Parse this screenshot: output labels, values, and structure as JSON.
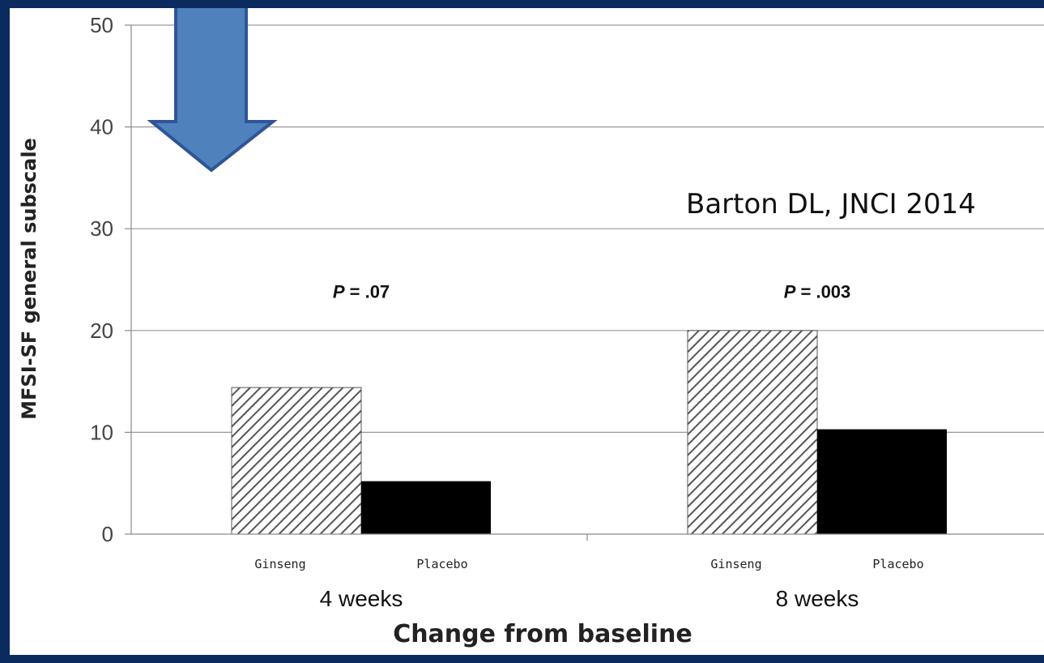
{
  "chart_data": {
    "type": "bar",
    "xlabel": "Change from baseline",
    "ylabel": "MFSI-SF general subscale",
    "ylim": [
      0,
      50
    ],
    "yticks": [
      0,
      10,
      20,
      30,
      40,
      50
    ],
    "grid": true,
    "categories": [
      "4 weeks",
      "8 weeks"
    ],
    "series": [
      {
        "name": "Ginseng",
        "values": [
          14.4,
          20.0
        ],
        "pattern": "diagonal-hatch",
        "color": "#555555"
      },
      {
        "name": "Placebo",
        "values": [
          5.2,
          10.3
        ],
        "color": "#000000"
      }
    ],
    "annotations": [
      {
        "category": "4 weeks",
        "text": "P = .07",
        "y": 23.2
      },
      {
        "category": "8 weeks",
        "text": "P = .003",
        "y": 23.2
      }
    ]
  },
  "citation": "Barton DL, JNCI 2014",
  "colors": {
    "frame": "#0b2a5e",
    "arrow_fill": "#4f81bd",
    "arrow_stroke": "#2f5597"
  }
}
